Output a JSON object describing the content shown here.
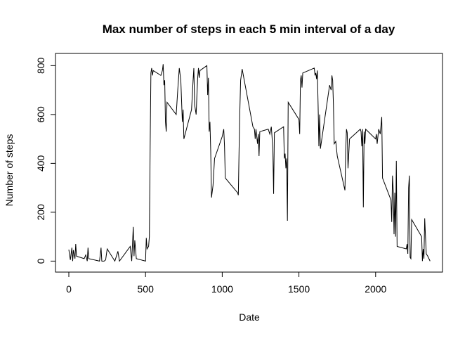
{
  "chart_data": {
    "type": "line",
    "title": "Max number of steps in each 5 min interval of a day",
    "x_label": "Date",
    "y_label": "Number of steps",
    "x": [
      0,
      10,
      20,
      25,
      30,
      40,
      45,
      50,
      100,
      110,
      120,
      125,
      130,
      200,
      210,
      215,
      230,
      240,
      250,
      300,
      320,
      330,
      400,
      410,
      420,
      425,
      430,
      440,
      500,
      505,
      510,
      520,
      525,
      530,
      535,
      540,
      545,
      550,
      600,
      610,
      615,
      620,
      625,
      630,
      635,
      640,
      700,
      710,
      720,
      730,
      740,
      745,
      750,
      800,
      810,
      815,
      820,
      830,
      835,
      840,
      845,
      850,
      855,
      900,
      905,
      910,
      915,
      920,
      925,
      930,
      940,
      950,
      1000,
      1010,
      1015,
      1020,
      1100,
      1105,
      1110,
      1115,
      1120,
      1130,
      1200,
      1210,
      1215,
      1220,
      1230,
      1235,
      1240,
      1245,
      1300,
      1310,
      1320,
      1330,
      1335,
      1340,
      1400,
      1405,
      1410,
      1415,
      1420,
      1425,
      1430,
      1500,
      1505,
      1510,
      1515,
      1520,
      1525,
      1600,
      1605,
      1610,
      1615,
      1620,
      1625,
      1630,
      1635,
      1640,
      1700,
      1710,
      1715,
      1720,
      1725,
      1730,
      1740,
      1750,
      1800,
      1805,
      1810,
      1815,
      1820,
      1830,
      1900,
      1905,
      1910,
      1915,
      1920,
      1925,
      1930,
      1935,
      2000,
      2005,
      2010,
      2020,
      2030,
      2040,
      2045,
      2100,
      2105,
      2110,
      2115,
      2120,
      2125,
      2130,
      2135,
      2140,
      2200,
      2205,
      2210,
      2215,
      2220,
      2225,
      2230,
      2235,
      2300,
      2305,
      2310,
      2315,
      2320,
      2330,
      2340,
      2355
    ],
    "series": [
      {
        "name": "steps",
        "color": "#000000",
        "values": [
          47,
          5,
          55,
          0,
          45,
          10,
          70,
          20,
          10,
          25,
          0,
          55,
          10,
          0,
          55,
          0,
          0,
          5,
          50,
          0,
          40,
          0,
          60,
          0,
          140,
          20,
          85,
          10,
          0,
          95,
          50,
          60,
          100,
          460,
          770,
          790,
          760,
          780,
          760,
          780,
          806,
          720,
          740,
          570,
          530,
          650,
          600,
          700,
          790,
          740,
          570,
          620,
          500,
          620,
          740,
          790,
          640,
          600,
          680,
          750,
          790,
          750,
          780,
          800,
          680,
          750,
          530,
          570,
          450,
          260,
          310,
          420,
          510,
          540,
          470,
          340,
          280,
          270,
          460,
          620,
          740,
          786,
          550,
          540,
          500,
          540,
          480,
          520,
          430,
          530,
          540,
          520,
          550,
          460,
          275,
          525,
          550,
          420,
          440,
          380,
          420,
          165,
          650,
          580,
          520,
          740,
          760,
          710,
          770,
          790,
          760,
          770,
          745,
          780,
          640,
          470,
          600,
          460,
          720,
          700,
          760,
          740,
          640,
          480,
          490,
          430,
          290,
          450,
          540,
          525,
          380,
          500,
          540,
          530,
          470,
          540,
          220,
          530,
          480,
          540,
          500,
          520,
          480,
          540,
          520,
          590,
          340,
          250,
          160,
          350,
          290,
          110,
          280,
          100,
          410,
          60,
          50,
          70,
          30,
          300,
          350,
          15,
          10,
          170,
          100,
          0,
          50,
          10,
          175,
          30,
          20,
          0
        ]
      }
    ],
    "xlim": [
      -87,
      2436
    ],
    "ylim": [
      -45,
      850
    ],
    "xticks": [
      0,
      500,
      1000,
      1500,
      2000
    ],
    "yticks": [
      0,
      200,
      400,
      600,
      800
    ]
  }
}
